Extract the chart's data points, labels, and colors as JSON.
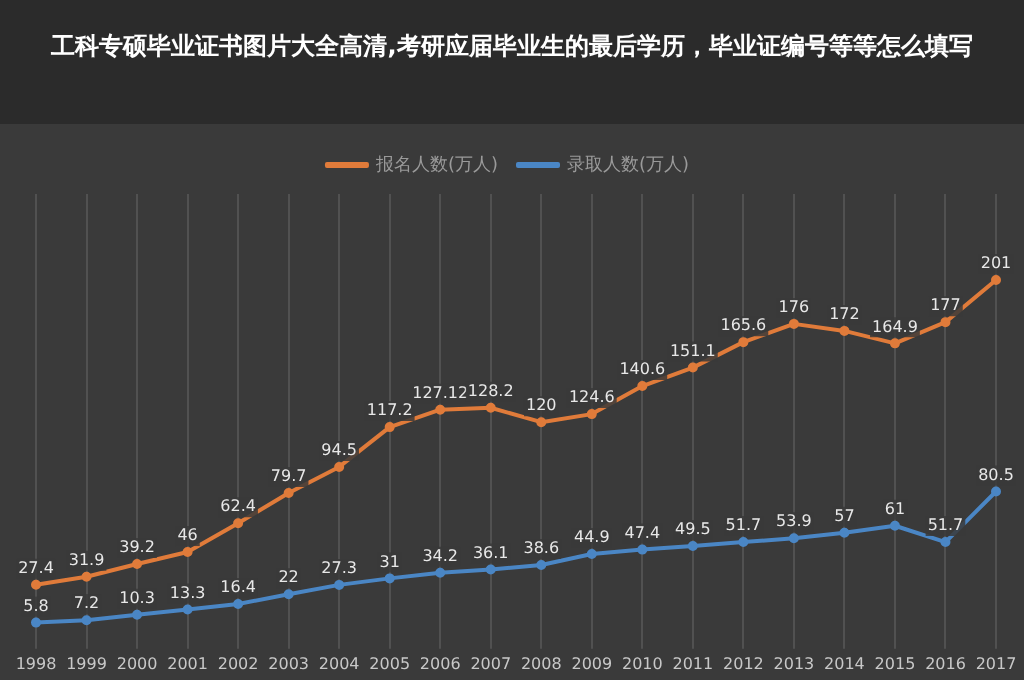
{
  "chart_data": {
    "type": "line",
    "title": "工科专硕毕业证书图片大全高清,考研应届毕业生的最后学历，毕业证编号等等怎么填写",
    "categories": [
      "1998",
      "1999",
      "2000",
      "2001",
      "2002",
      "2003",
      "2004",
      "2005",
      "2006",
      "2007",
      "2008",
      "2009",
      "2010",
      "2011",
      "2012",
      "2013",
      "2014",
      "2015",
      "2016",
      "2017"
    ],
    "series": [
      {
        "name": "报名人数(万人)",
        "color": "#e07b3a",
        "values": [
          27.4,
          31.9,
          39.2,
          46,
          62.4,
          79.7,
          94.5,
          117.2,
          127.12,
          128.2,
          120,
          124.6,
          140.6,
          151.1,
          165.6,
          176,
          172,
          164.9,
          177,
          201
        ]
      },
      {
        "name": "录取人数(万人)",
        "color": "#4a86c5",
        "values": [
          5.8,
          7.2,
          10.3,
          13.3,
          16.4,
          22,
          27.3,
          31,
          34.2,
          36.1,
          38.6,
          44.9,
          47.4,
          49.5,
          51.7,
          53.9,
          57,
          61,
          51.7,
          80.5
        ]
      }
    ],
    "data_labels": true,
    "legend": "top",
    "grid": "x",
    "marker": "circle",
    "line_style": "solid"
  }
}
